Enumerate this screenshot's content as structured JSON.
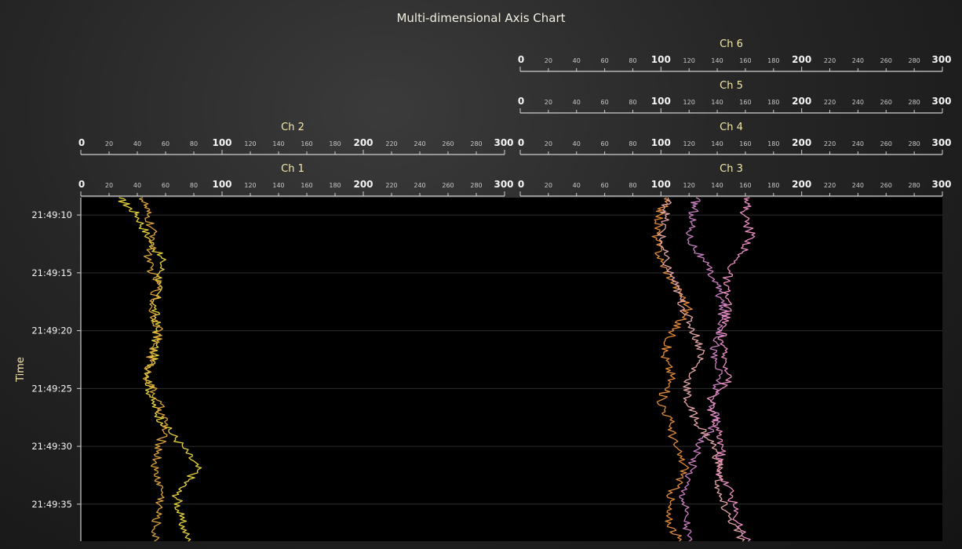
{
  "chart_data": {
    "type": "line",
    "title": "Multi-dimensional Axis Chart",
    "ylabel": "Time",
    "y_axis": {
      "min": "21:49:08.5",
      "max": "21:49:38.2",
      "ticks": [
        "21:49:10",
        "21:49:15",
        "21:49:20",
        "21:49:25",
        "21:49:30",
        "21:49:35"
      ],
      "reversed": true
    },
    "x_axes": [
      {
        "name": "Ch 1",
        "range": [
          0,
          300
        ],
        "group": "left",
        "level": 1
      },
      {
        "name": "Ch 2",
        "range": [
          0,
          300
        ],
        "group": "left",
        "level": 2
      },
      {
        "name": "Ch 3",
        "range": [
          0,
          300
        ],
        "group": "right",
        "level": 1
      },
      {
        "name": "Ch 4",
        "range": [
          0,
          300
        ],
        "group": "right",
        "level": 2
      },
      {
        "name": "Ch 5",
        "range": [
          0,
          300
        ],
        "group": "right",
        "level": 3
      },
      {
        "name": "Ch 6",
        "range": [
          0,
          300
        ],
        "group": "right",
        "level": 4
      }
    ],
    "tick_labels": [
      "0",
      "20",
      "40",
      "60",
      "80",
      "100",
      "120",
      "140",
      "160",
      "180",
      "200",
      "220",
      "240",
      "260",
      "280",
      "300"
    ],
    "major_ticks": [
      "0",
      "100",
      "200",
      "300"
    ],
    "series": [
      {
        "axis": "Ch 1",
        "color": "#e6d23f",
        "time": [
          8.5,
          10,
          12,
          14,
          16,
          18,
          20,
          22,
          24,
          26,
          28,
          30,
          32,
          34,
          36,
          38.2
        ],
        "values": [
          27,
          40,
          48,
          58,
          55,
          52,
          54,
          52,
          48,
          50,
          58,
          72,
          83,
          68,
          70,
          76
        ]
      },
      {
        "axis": "Ch 2",
        "color": "#d9a23c",
        "time": [
          8.5,
          10,
          12,
          14,
          16,
          18,
          20,
          22,
          24,
          26,
          28,
          30,
          32,
          34,
          36,
          38.2
        ],
        "values": [
          44,
          47,
          52,
          47,
          55,
          50,
          56,
          50,
          47,
          54,
          60,
          56,
          52,
          58,
          54,
          52
        ]
      },
      {
        "axis": "Ch 3",
        "color": "#e08a3a",
        "time": [
          8.5,
          10,
          12,
          14,
          16,
          18,
          20,
          22,
          24,
          26,
          28,
          30,
          32,
          34,
          36,
          38.2
        ],
        "values": [
          104,
          99,
          97,
          100,
          110,
          120,
          109,
          102,
          108,
          100,
          107,
          110,
          118,
          108,
          104,
          113
        ]
      },
      {
        "axis": "Ch 4",
        "color": "#e2a6a6",
        "time": [
          8.5,
          10,
          12,
          14,
          16,
          18,
          20,
          22,
          24,
          26,
          28,
          30,
          32,
          34,
          36,
          38.2
        ],
        "values": [
          105,
          103,
          100,
          103,
          110,
          116,
          123,
          130,
          120,
          118,
          126,
          138,
          142,
          140,
          148,
          158
        ]
      },
      {
        "axis": "Ch 5",
        "color": "#c87fc0",
        "time": [
          8.5,
          10,
          12,
          14,
          16,
          18,
          20,
          22,
          24,
          26,
          28,
          30,
          32,
          34,
          36,
          38.2
        ],
        "values": [
          125,
          123,
          120,
          130,
          140,
          144,
          143,
          137,
          142,
          136,
          140,
          126,
          122,
          116,
          118,
          120
        ]
      },
      {
        "axis": "Ch 6",
        "color": "#e98cc0",
        "time": [
          8.5,
          10,
          12,
          14,
          16,
          18,
          20,
          22,
          24,
          26,
          28,
          30,
          32,
          34,
          36,
          38.2
        ],
        "values": [
          163,
          159,
          165,
          152,
          145,
          148,
          143,
          144,
          150,
          135,
          138,
          144,
          140,
          150,
          153,
          162
        ]
      }
    ]
  }
}
